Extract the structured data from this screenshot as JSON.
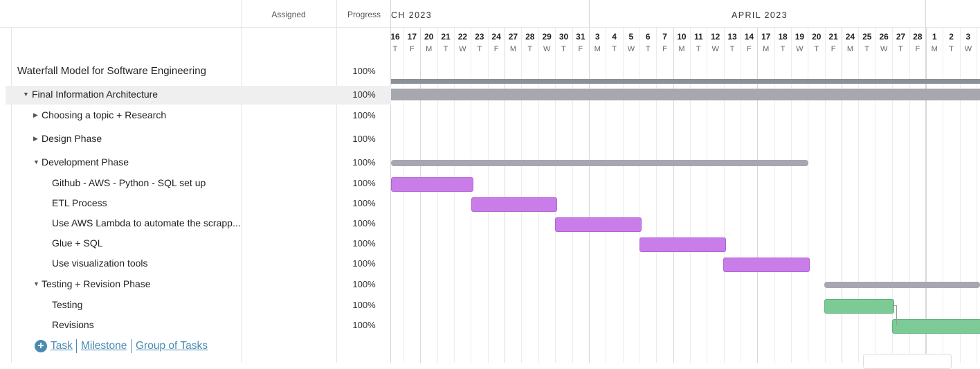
{
  "columns": {
    "assigned": "Assigned",
    "progress": "Progress"
  },
  "timeline": {
    "months": [
      "CH 2023",
      "APRIL 2023"
    ],
    "days": [
      {
        "num": "16",
        "let": "T"
      },
      {
        "num": "17",
        "let": "F"
      },
      {
        "num": "20",
        "let": "M"
      },
      {
        "num": "21",
        "let": "T"
      },
      {
        "num": "22",
        "let": "W"
      },
      {
        "num": "23",
        "let": "T"
      },
      {
        "num": "24",
        "let": "F"
      },
      {
        "num": "27",
        "let": "M"
      },
      {
        "num": "28",
        "let": "T"
      },
      {
        "num": "29",
        "let": "W"
      },
      {
        "num": "30",
        "let": "T"
      },
      {
        "num": "31",
        "let": "F"
      },
      {
        "num": "3",
        "let": "M"
      },
      {
        "num": "4",
        "let": "T"
      },
      {
        "num": "5",
        "let": "W"
      },
      {
        "num": "6",
        "let": "T"
      },
      {
        "num": "7",
        "let": "F"
      },
      {
        "num": "10",
        "let": "M"
      },
      {
        "num": "11",
        "let": "T"
      },
      {
        "num": "12",
        "let": "W"
      },
      {
        "num": "13",
        "let": "T"
      },
      {
        "num": "14",
        "let": "F"
      },
      {
        "num": "17",
        "let": "M"
      },
      {
        "num": "18",
        "let": "T"
      },
      {
        "num": "19",
        "let": "W"
      },
      {
        "num": "20",
        "let": "T"
      },
      {
        "num": "21",
        "let": "F"
      },
      {
        "num": "24",
        "let": "M"
      },
      {
        "num": "25",
        "let": "T"
      },
      {
        "num": "26",
        "let": "W"
      },
      {
        "num": "27",
        "let": "T"
      },
      {
        "num": "28",
        "let": "F"
      },
      {
        "num": "1",
        "let": "M"
      },
      {
        "num": "2",
        "let": "T"
      },
      {
        "num": "3",
        "let": "W"
      }
    ]
  },
  "tasks": [
    {
      "name": "Waterfall Model for Software Engineering",
      "progress": "100%"
    },
    {
      "name": "Final Information Architecture",
      "progress": "100%"
    },
    {
      "name": "Choosing a topic + Research",
      "progress": "100%"
    },
    {
      "name": "Design Phase",
      "progress": "100%"
    },
    {
      "name": "Development Phase",
      "progress": "100%"
    },
    {
      "name": "Github - AWS - Python - SQL set up",
      "progress": "100%"
    },
    {
      "name": "ETL Process",
      "progress": "100%"
    },
    {
      "name": "Use AWS Lambda to automate the scrapp...",
      "progress": "100%"
    },
    {
      "name": "Glue + SQL",
      "progress": "100%"
    },
    {
      "name": "Use visualization tools",
      "progress": "100%"
    },
    {
      "name": "Testing + Revision Phase",
      "progress": "100%"
    },
    {
      "name": "Testing",
      "progress": "100%"
    },
    {
      "name": "Revisions",
      "progress": "100%"
    }
  ],
  "footer": {
    "task": "Task",
    "milestone": "Milestone",
    "group": "Group of Tasks"
  },
  "colors": {
    "purple": "#c97de8",
    "green": "#7ccb97",
    "gray": "#a7a7b0",
    "dark": "#8a9197"
  }
}
